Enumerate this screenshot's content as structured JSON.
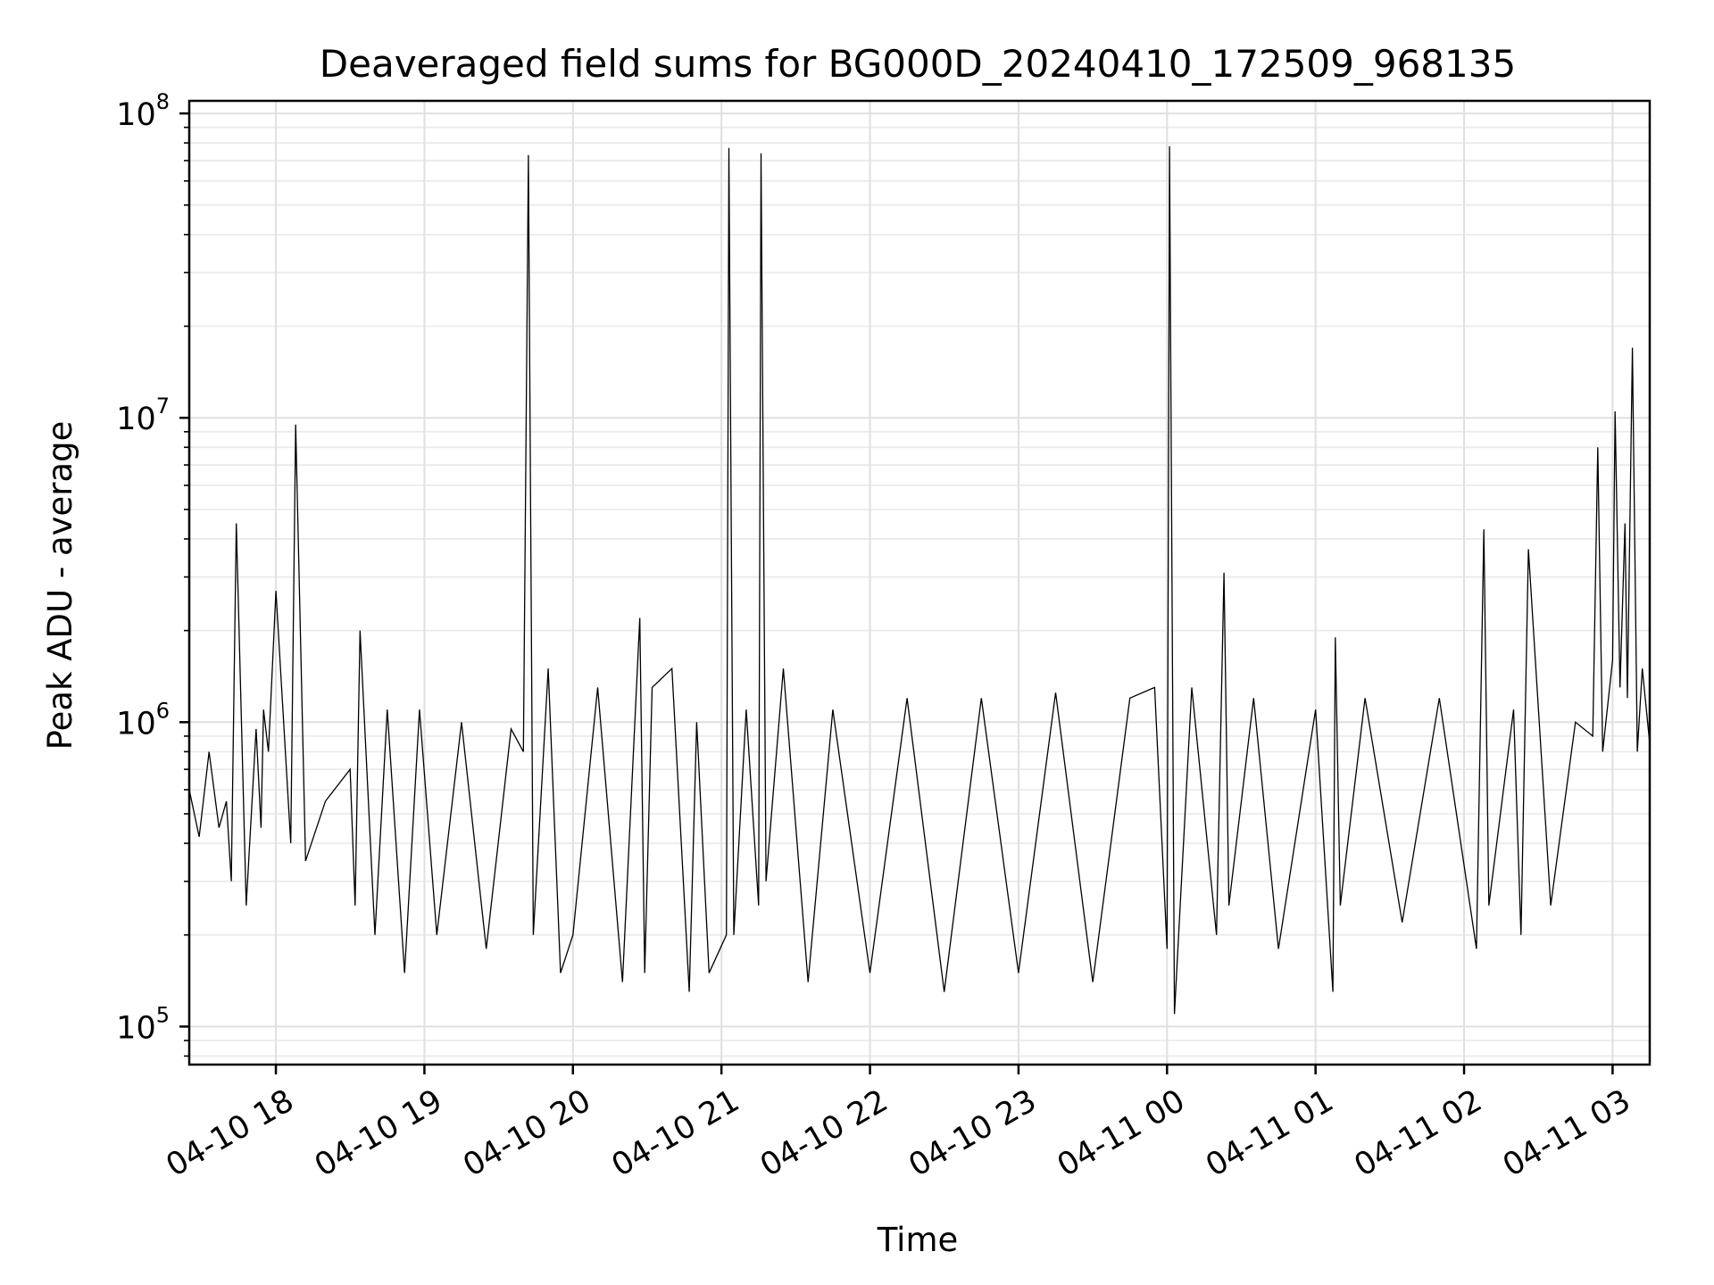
{
  "chart_data": {
    "type": "line",
    "title": "Deaveraged field sums for BG000D_20240410_172509_968135",
    "xlabel": "Time",
    "ylabel": "Peak ADU - average",
    "yscale": "log",
    "ylim": [
      75000,
      110000000
    ],
    "xlim": [
      "2024-04-10 17:25",
      "2024-04-11 03:15"
    ],
    "grid": true,
    "x_ticks": [
      {
        "t": "2024-04-10 18:00",
        "label": "04-10 18"
      },
      {
        "t": "2024-04-10 19:00",
        "label": "04-10 19"
      },
      {
        "t": "2024-04-10 20:00",
        "label": "04-10 20"
      },
      {
        "t": "2024-04-10 21:00",
        "label": "04-10 21"
      },
      {
        "t": "2024-04-10 22:00",
        "label": "04-10 22"
      },
      {
        "t": "2024-04-10 23:00",
        "label": "04-10 23"
      },
      {
        "t": "2024-04-11 00:00",
        "label": "04-11 00"
      },
      {
        "t": "2024-04-11 01:00",
        "label": "04-11 01"
      },
      {
        "t": "2024-04-11 02:00",
        "label": "04-11 02"
      },
      {
        "t": "2024-04-11 03:00",
        "label": "04-11 03"
      }
    ],
    "y_ticks": [
      {
        "value": 100000,
        "base": "10",
        "exp": "5"
      },
      {
        "value": 1000000,
        "base": "10",
        "exp": "6"
      },
      {
        "value": 10000000,
        "base": "10",
        "exp": "7"
      },
      {
        "value": 100000000,
        "base": "10",
        "exp": "8"
      }
    ],
    "series": [
      {
        "color": "#000000",
        "x": [
          "2024-04-10 17:25",
          "2024-04-10 17:29",
          "2024-04-10 17:33",
          "2024-04-10 17:37",
          "2024-04-10 17:40",
          "2024-04-10 17:42",
          "2024-04-10 17:44",
          "2024-04-10 17:48",
          "2024-04-10 17:52",
          "2024-04-10 17:54",
          "2024-04-10 17:55",
          "2024-04-10 17:57",
          "2024-04-10 18:00",
          "2024-04-10 18:06",
          "2024-04-10 18:08",
          "2024-04-10 18:12",
          "2024-04-10 18:20",
          "2024-04-10 18:30",
          "2024-04-10 18:32",
          "2024-04-10 18:34",
          "2024-04-10 18:40",
          "2024-04-10 18:45",
          "2024-04-10 18:52",
          "2024-04-10 18:58",
          "2024-04-10 19:05",
          "2024-04-10 19:15",
          "2024-04-10 19:25",
          "2024-04-10 19:35",
          "2024-04-10 19:40",
          "2024-04-10 19:42",
          "2024-04-10 19:44",
          "2024-04-10 19:50",
          "2024-04-10 19:55",
          "2024-04-10 20:00",
          "2024-04-10 20:10",
          "2024-04-10 20:20",
          "2024-04-10 20:27",
          "2024-04-10 20:29",
          "2024-04-10 20:32",
          "2024-04-10 20:40",
          "2024-04-10 20:47",
          "2024-04-10 20:50",
          "2024-04-10 20:55",
          "2024-04-10 21:02",
          "2024-04-10 21:03",
          "2024-04-10 21:05",
          "2024-04-10 21:10",
          "2024-04-10 21:15",
          "2024-04-10 21:16",
          "2024-04-10 21:18",
          "2024-04-10 21:25",
          "2024-04-10 21:35",
          "2024-04-10 21:45",
          "2024-04-10 22:00",
          "2024-04-10 22:15",
          "2024-04-10 22:30",
          "2024-04-10 22:45",
          "2024-04-10 23:00",
          "2024-04-10 23:15",
          "2024-04-10 23:30",
          "2024-04-10 23:45",
          "2024-04-10 23:55",
          "2024-04-11 00:00",
          "2024-04-11 00:01",
          "2024-04-11 00:03",
          "2024-04-11 00:10",
          "2024-04-11 00:20",
          "2024-04-11 00:23",
          "2024-04-11 00:25",
          "2024-04-11 00:35",
          "2024-04-11 00:45",
          "2024-04-11 01:00",
          "2024-04-11 01:07",
          "2024-04-11 01:08",
          "2024-04-11 01:10",
          "2024-04-11 01:20",
          "2024-04-11 01:35",
          "2024-04-11 01:50",
          "2024-04-11 02:05",
          "2024-04-11 02:08",
          "2024-04-11 02:10",
          "2024-04-11 02:20",
          "2024-04-11 02:23",
          "2024-04-11 02:26",
          "2024-04-11 02:35",
          "2024-04-11 02:45",
          "2024-04-11 02:52",
          "2024-04-11 02:54",
          "2024-04-11 02:56",
          "2024-04-11 03:00",
          "2024-04-11 03:01",
          "2024-04-11 03:03",
          "2024-04-11 03:05",
          "2024-04-11 03:06",
          "2024-04-11 03:08",
          "2024-04-11 03:10",
          "2024-04-11 03:12",
          "2024-04-11 03:15"
        ],
        "y": [
          600000,
          420000,
          800000,
          450000,
          550000,
          300000,
          4500000,
          250000,
          950000,
          450000,
          1100000,
          800000,
          2700000,
          400000,
          9500000,
          350000,
          550000,
          700000,
          250000,
          2000000,
          200000,
          1100000,
          150000,
          1100000,
          200000,
          1000000,
          180000,
          950000,
          800000,
          73000000,
          200000,
          1500000,
          150000,
          200000,
          1300000,
          140000,
          2200000,
          150000,
          1300000,
          1500000,
          130000,
          1000000,
          150000,
          200000,
          77000000,
          200000,
          1100000,
          250000,
          74000000,
          300000,
          1500000,
          140000,
          1100000,
          150000,
          1200000,
          130000,
          1200000,
          150000,
          1250000,
          140000,
          1200000,
          1300000,
          180000,
          78000000,
          110000,
          1300000,
          200000,
          3100000,
          250000,
          1200000,
          180000,
          1100000,
          130000,
          1900000,
          250000,
          1200000,
          220000,
          1200000,
          180000,
          4300000,
          250000,
          1100000,
          200000,
          3700000,
          250000,
          1000000,
          900000,
          8000000,
          800000,
          1600000,
          10500000,
          1300000,
          4500000,
          1200000,
          17000000,
          800000,
          1500000,
          850000
        ]
      }
    ]
  }
}
